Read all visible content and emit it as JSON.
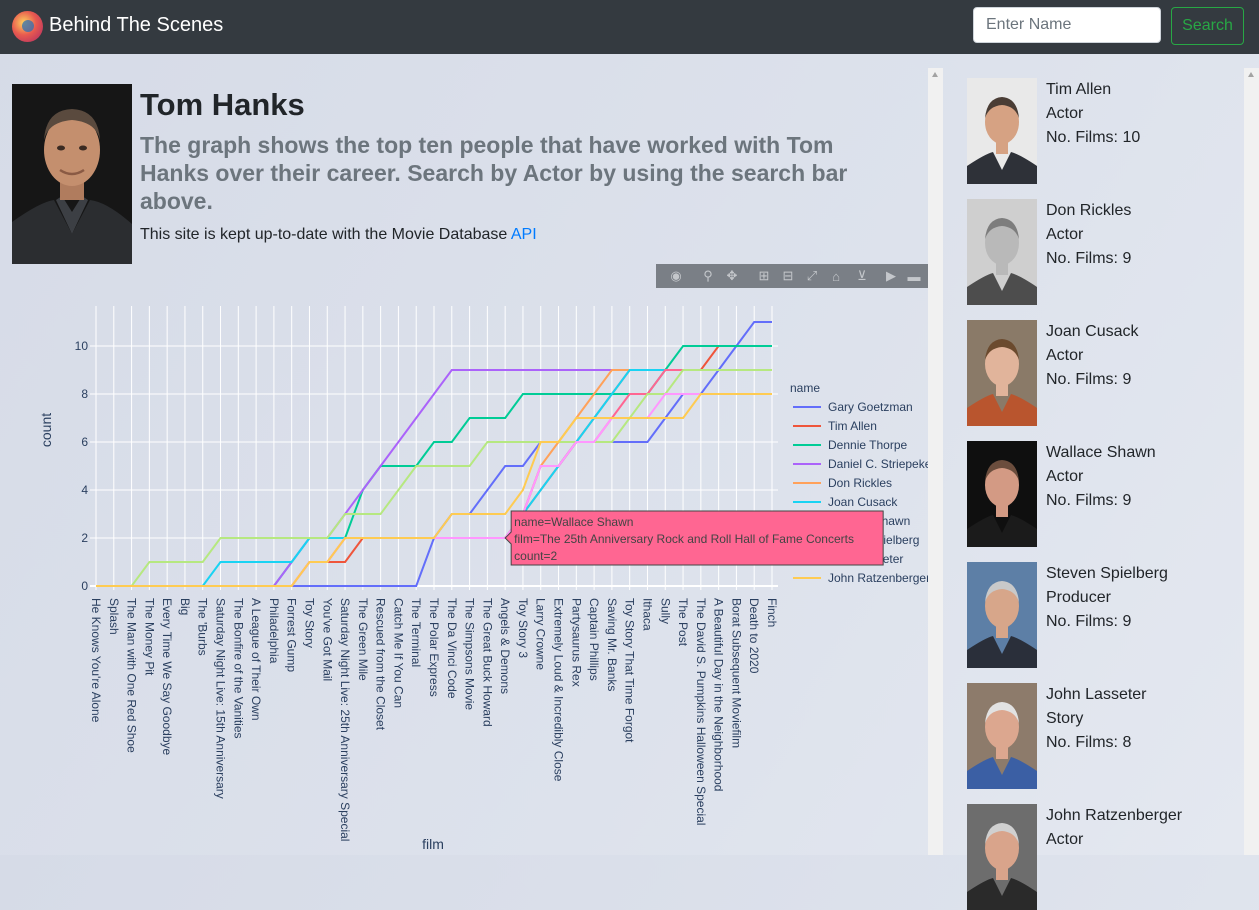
{
  "navbar": {
    "brand": "Behind The Scenes",
    "search_placeholder": "Enter Name",
    "search_button": "Search"
  },
  "header": {
    "name": "Tom Hanks",
    "lead": "The graph shows the top ten people that have worked with Tom Hanks over their career. Search by Actor by using the search bar above.",
    "note_prefix": "This site is kept up-to-date with the Movie Database ",
    "note_link": "API"
  },
  "modebar_icons": [
    "camera-icon",
    "zoom-icon",
    "pan-icon",
    "zoom-in-icon",
    "zoom-out-icon",
    "autoscale-icon",
    "home-icon",
    "spike-lines-icon",
    "hover-closest-icon",
    "hover-compare-icon"
  ],
  "chart_data": {
    "type": "line",
    "xlabel": "film",
    "ylabel": "count",
    "legend_title": "name",
    "legend_position": "right",
    "grid": true,
    "ylim": [
      0,
      11.5
    ],
    "yticks": [
      0,
      2,
      4,
      6,
      8,
      10
    ],
    "categories": [
      "He Knows You're Alone",
      "Splash",
      "The Man with One Red Shoe",
      "The Money Pit",
      "Every Time We Say Goodbye",
      "Big",
      "The 'Burbs",
      "Saturday Night Live: 15th Anniversary",
      "The Bonfire of the Vanities",
      "A League of Their Own",
      "Philadelphia",
      "Forrest Gump",
      "Toy Story",
      "You've Got Mail",
      "Saturday Night Live: 25th Anniversary Special",
      "The Green Mile",
      "Rescued from the Closet",
      "Catch Me If You Can",
      "The Terminal",
      "The Polar Express",
      "The Da Vinci Code",
      "The Simpsons Movie",
      "The Great Buck Howard",
      "Angels & Demons",
      "Toy Story 3",
      "Larry Crowne",
      "Extremely Loud & Incredibly Close",
      "Partysaurus Rex",
      "Captain Phillips",
      "Saving Mr. Banks",
      "Toy Story That Time Forgot",
      "Ithaca",
      "Sully",
      "The Post",
      "The David S. Pumpkins Halloween Special",
      "A Beautiful Day in the Neighborhood",
      "Borat Subsequent Moviefilm",
      "Death to 2020",
      "Finch"
    ],
    "series": [
      {
        "name": "Gary Goetzman",
        "color": "#636efa",
        "values": [
          0,
          0,
          0,
          0,
          0,
          0,
          0,
          0,
          0,
          0,
          0,
          0,
          0,
          0,
          0,
          0,
          0,
          0,
          0,
          2,
          3,
          3,
          4,
          5,
          5,
          6,
          6,
          6,
          6,
          6,
          6,
          6,
          7,
          8,
          8,
          9,
          10,
          11,
          11
        ]
      },
      {
        "name": "Tim Allen",
        "color": "#EF553B",
        "values": [
          0,
          0,
          0,
          0,
          0,
          0,
          0,
          0,
          0,
          0,
          0,
          0,
          1,
          1,
          1,
          2,
          2,
          2,
          2,
          2,
          2,
          2,
          2,
          2,
          3,
          4,
          5,
          6,
          7,
          8,
          9,
          9,
          9,
          9,
          9,
          10,
          10,
          10,
          10
        ]
      },
      {
        "name": "Dennie Thorpe",
        "color": "#00cc96",
        "values": [
          0,
          0,
          0,
          0,
          0,
          0,
          0,
          0,
          0,
          0,
          0,
          1,
          2,
          2,
          2,
          4,
          5,
          5,
          5,
          6,
          6,
          7,
          7,
          7,
          8,
          8,
          8,
          8,
          8,
          8,
          8,
          8,
          9,
          10,
          10,
          10,
          10,
          10,
          10
        ]
      },
      {
        "name": "Daniel C. Striepeke",
        "color": "#ab63fa",
        "values": [
          0,
          0,
          0,
          0,
          0,
          0,
          0,
          0,
          0,
          0,
          0,
          1,
          2,
          2,
          3,
          4,
          5,
          6,
          7,
          8,
          9,
          9,
          9,
          9,
          9,
          9,
          9,
          9,
          9,
          9,
          9,
          9,
          9,
          9,
          9,
          9,
          9,
          9,
          9
        ]
      },
      {
        "name": "Don Rickles",
        "color": "#FFA15A",
        "values": [
          0,
          0,
          0,
          0,
          0,
          0,
          0,
          0,
          0,
          0,
          0,
          0,
          1,
          1,
          2,
          2,
          2,
          2,
          2,
          2,
          2,
          2,
          2,
          2,
          3,
          5,
          6,
          7,
          8,
          9,
          9,
          9,
          9,
          9,
          9,
          9,
          9,
          9,
          9
        ]
      },
      {
        "name": "Joan Cusack",
        "color": "#19d3f3",
        "values": [
          0,
          0,
          0,
          0,
          0,
          0,
          0,
          1,
          1,
          1,
          1,
          1,
          2,
          2,
          2,
          2,
          2,
          2,
          2,
          2,
          2,
          2,
          2,
          2,
          3,
          4,
          5,
          6,
          7,
          8,
          9,
          9,
          9,
          9,
          9,
          9,
          9,
          9,
          9
        ]
      },
      {
        "name": "Wallace Shawn",
        "color": "#FF6692",
        "values": [
          0,
          0,
          0,
          0,
          0,
          0,
          0,
          0,
          0,
          0,
          0,
          0,
          1,
          1,
          2,
          2,
          2,
          2,
          2,
          2,
          2,
          2,
          2,
          2,
          3,
          5,
          5,
          6,
          6,
          7,
          8,
          8,
          9,
          9,
          9,
          9,
          9,
          9,
          9
        ]
      },
      {
        "name": "Steven Spielberg",
        "color": "#B6E880",
        "values": [
          0,
          0,
          0,
          1,
          1,
          1,
          1,
          2,
          2,
          2,
          2,
          2,
          2,
          2,
          3,
          3,
          3,
          4,
          5,
          5,
          5,
          5,
          6,
          6,
          6,
          6,
          6,
          6,
          6,
          6,
          7,
          8,
          8,
          9,
          9,
          9,
          9,
          9,
          9
        ]
      },
      {
        "name": "John Lasseter",
        "color": "#FF97FF",
        "values": [
          0,
          0,
          0,
          0,
          0,
          0,
          0,
          0,
          0,
          0,
          0,
          0,
          1,
          1,
          2,
          2,
          2,
          2,
          2,
          2,
          2,
          2,
          2,
          2,
          3,
          5,
          5,
          6,
          6,
          7,
          7,
          7,
          8,
          8,
          8,
          8,
          8,
          8,
          8
        ]
      },
      {
        "name": "John Ratzenberger",
        "color": "#FECB52",
        "values": [
          0,
          0,
          0,
          0,
          0,
          0,
          0,
          0,
          0,
          0,
          0,
          0,
          1,
          1,
          2,
          2,
          2,
          2,
          2,
          2,
          3,
          3,
          3,
          3,
          4,
          6,
          6,
          7,
          7,
          7,
          7,
          7,
          7,
          7,
          8,
          8,
          8,
          8,
          8
        ]
      }
    ],
    "tooltip": {
      "lines": [
        "name=Wallace Shawn",
        "film=The 25th Anniversary Rock and Roll Hall of Fame Concerts",
        "count=2"
      ],
      "color": "#FF6692"
    }
  },
  "sidebar": {
    "people": [
      {
        "name": "Tim Allen",
        "role": "Actor",
        "films": "No. Films: 10"
      },
      {
        "name": "Don Rickles",
        "role": "Actor",
        "films": "No. Films: 9"
      },
      {
        "name": "Joan Cusack",
        "role": "Actor",
        "films": "No. Films: 9"
      },
      {
        "name": "Wallace Shawn",
        "role": "Actor",
        "films": "No. Films: 9"
      },
      {
        "name": "Steven Spielberg",
        "role": "Producer",
        "films": "No. Films: 9"
      },
      {
        "name": "John Lasseter",
        "role": "Story",
        "films": "No. Films: 8"
      },
      {
        "name": "John Ratzenberger",
        "role": "Actor",
        "films": ""
      }
    ]
  }
}
